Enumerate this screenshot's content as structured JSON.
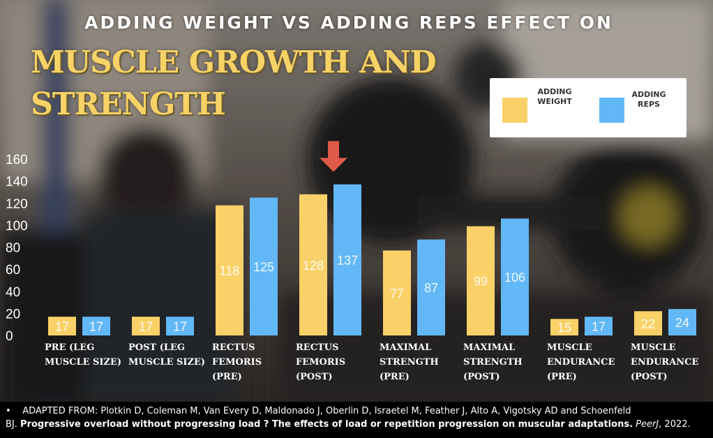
{
  "header": {
    "subtitle": "ADDING WEIGHT  VS ADDING REPS EFFECT ON",
    "title_line1": "MUSCLE GROWTH AND",
    "title_line2": "STRENGTH"
  },
  "colors": {
    "weight": "#f9d168",
    "reps": "#62b8f7",
    "arrow": "#e05a4a",
    "title": "#f7d266"
  },
  "chart_data": {
    "type": "bar",
    "categories": [
      [
        "PRE (LEG",
        "MUSCLE SIZE)"
      ],
      [
        "POST (LEG",
        "MUSCLE SIZE)"
      ],
      [
        "RECTUS",
        "FEMORIS",
        "(PRE)"
      ],
      [
        "RECTUS",
        "FEMORIS",
        "(POST)"
      ],
      [
        "MAXIMAL",
        "STRENGTH",
        "(PRE)"
      ],
      [
        "MAXIMAL",
        "STRENGTH",
        "(POST)"
      ],
      [
        "MUSCLE",
        "ENDURANCE",
        "(PRE)"
      ],
      [
        "MUSCLE",
        "ENDURANCE",
        "(POST)"
      ]
    ],
    "series": [
      {
        "name": "ADDING WEIGHT",
        "values": [
          17,
          17,
          118,
          128,
          77,
          99,
          15,
          22
        ]
      },
      {
        "name": "ADDING REPS",
        "values": [
          17,
          17,
          125,
          137,
          87,
          106,
          17,
          24
        ]
      }
    ],
    "ylim": [
      0,
      160
    ],
    "yticks": [
      0,
      20,
      40,
      60,
      80,
      100,
      120,
      140,
      160
    ],
    "data_labels": true,
    "legend": "top-right",
    "grid": false,
    "highlight": {
      "category_index": 3,
      "series_index": 1,
      "marker": "arrow"
    }
  },
  "legend": {
    "weight_label_1": "ADDING",
    "weight_label_2": "WEIGHT",
    "reps_label_1": "ADDING",
    "reps_label_2": "REPS"
  },
  "footer": {
    "bullet": "•",
    "lead": "ADAPTED FROM: Plotkin D, Coleman M, Van Every D, Maldonado J, Oberlin D, Israetel M, Feather J, Alto A, Vigotsky AD and Schoenfeld",
    "authors_tail": "BJ.",
    "paper_title": "Progressive overload without progressing load ? The effects of load or repetition progression on muscular adaptations.",
    "journal": "PeerJ",
    "year": ", 2022."
  }
}
